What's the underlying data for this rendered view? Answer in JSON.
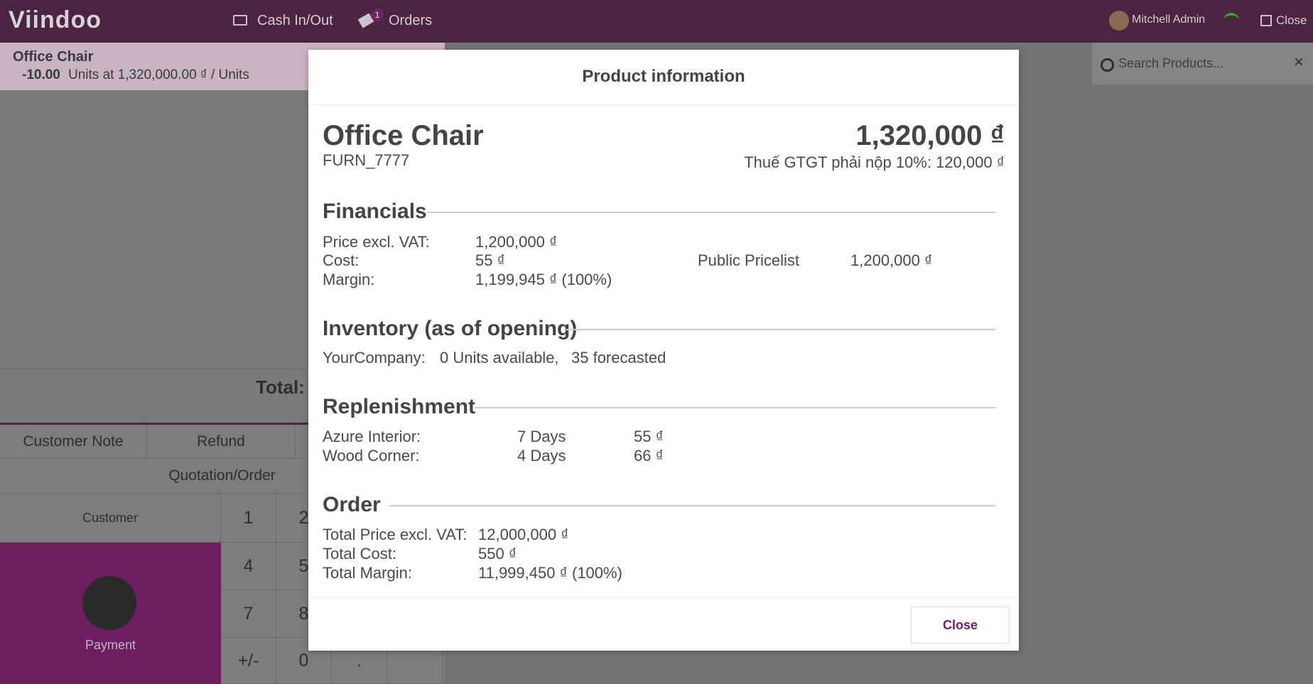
{
  "topbar": {
    "brand": "Viindoo",
    "cash": "Cash In/Out",
    "orders": "Orders",
    "orders_badge": "1",
    "user": "Mitchell Admin",
    "close": "Close"
  },
  "order": {
    "product": "Office Chair",
    "qty": "-10.00",
    "detail": "Units at 1,320,000.00 ₫ / Units",
    "total_label": "Total:"
  },
  "actions": {
    "customer_note": "Customer Note",
    "refund": "Refund",
    "quotation": "Quotation/Order",
    "customer": "Customer",
    "payment": "Payment"
  },
  "numpad": [
    "1",
    "2",
    "4",
    "5",
    "7",
    "8",
    "+/-",
    "0",
    "."
  ],
  "search": {
    "placeholder": "Search Products..."
  },
  "modal": {
    "title": "Product information",
    "name": "Office Chair",
    "code": "FURN_7777",
    "price": "1,320,000 ₫",
    "tax": "Thuế GTGT phải nộp 10%: 120,000 ₫",
    "financials": {
      "heading": "Financials",
      "rows": [
        [
          "Price excl. VAT:",
          "1,200,000 ₫"
        ],
        [
          "Cost:",
          "55 ₫"
        ],
        [
          "Margin:",
          "1,199,945 ₫ (100%)"
        ]
      ],
      "pricelist": [
        "Public Pricelist",
        "1,200,000 ₫"
      ]
    },
    "inventory": {
      "heading": "Inventory (as of opening)",
      "company": "YourCompany:",
      "available": "0 Units available,",
      "forecasted": "35 forecasted"
    },
    "replenishment": {
      "heading": "Replenishment",
      "rows": [
        [
          "Azure Interior:",
          "7 Days",
          "55 ₫"
        ],
        [
          "Wood Corner:",
          "4 Days",
          "66 ₫"
        ]
      ]
    },
    "order": {
      "heading": "Order",
      "rows": [
        [
          "Total Price excl. VAT:",
          "12,000,000 ₫"
        ],
        [
          "Total Cost:",
          "550 ₫"
        ],
        [
          "Total Margin:",
          "11,999,450 ₫ (100%)"
        ]
      ]
    },
    "close": "Close"
  }
}
